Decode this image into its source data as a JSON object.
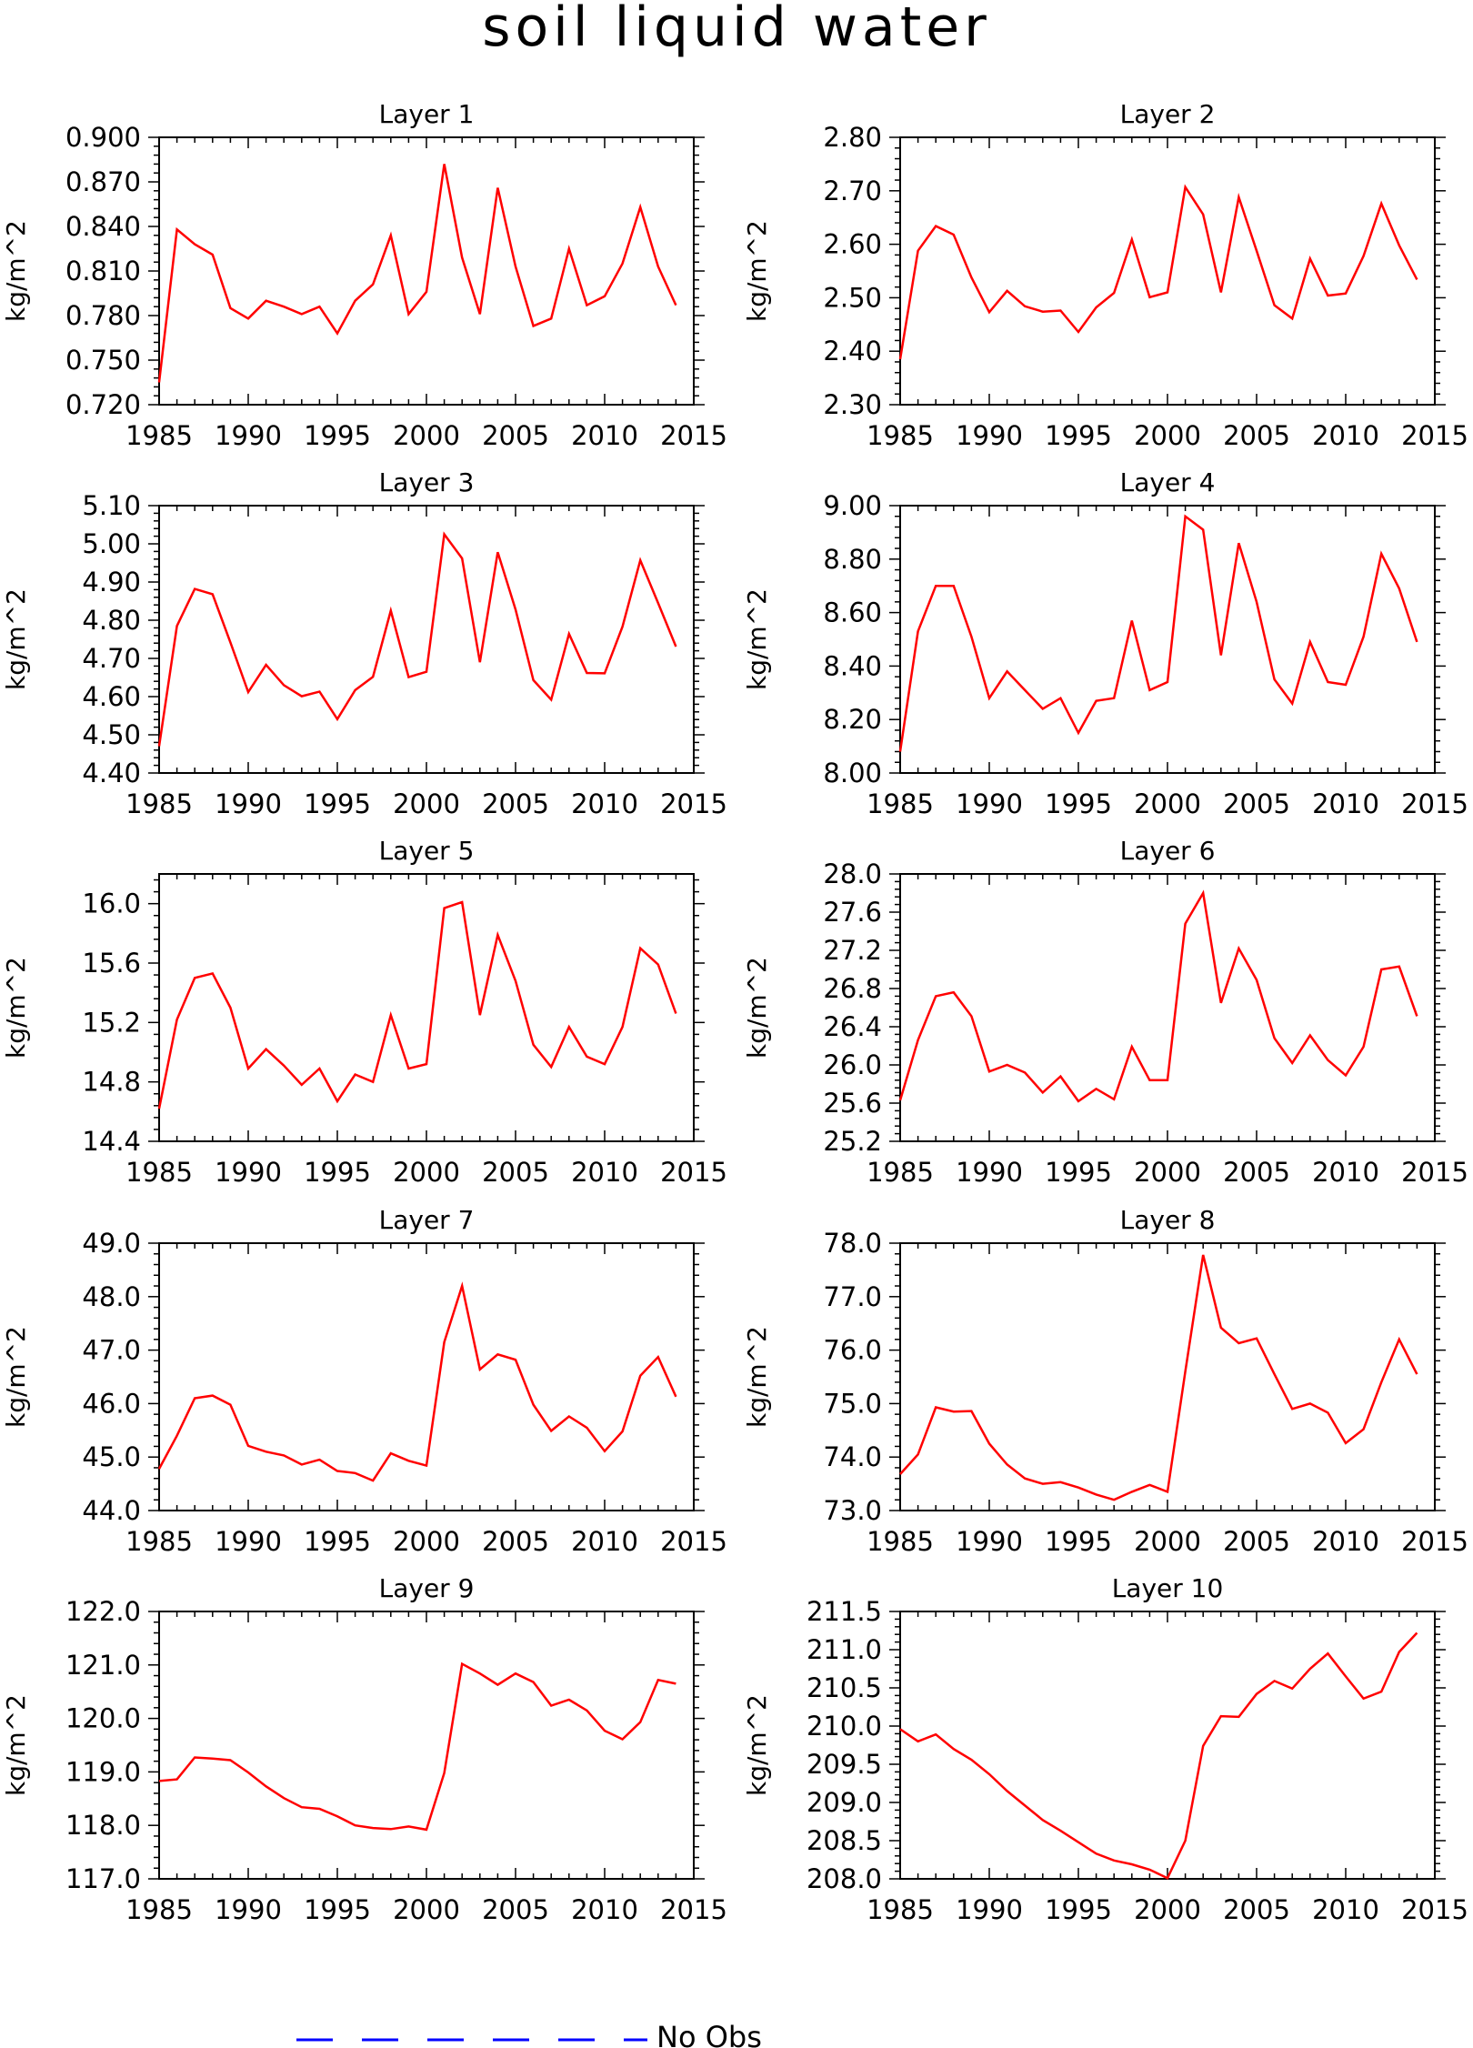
{
  "title": "soil liquid water",
  "legend": {
    "label": "No Obs",
    "color": "#0000ff",
    "style": "dashed"
  },
  "line_color": "#ff0000",
  "chart_data": [
    {
      "type": "line",
      "title": "Layer 1",
      "ylabel": "kg/m^2",
      "xlim": [
        1985,
        2015
      ],
      "ylim": [
        0.72,
        0.9
      ],
      "xticks": [
        "1985",
        "1990",
        "1995",
        "2000",
        "2005",
        "2010",
        "2015"
      ],
      "yticks": [
        "0.720",
        "0.750",
        "0.780",
        "0.810",
        "0.840",
        "0.870",
        "0.900"
      ],
      "x": [
        1985,
        1986,
        1987,
        1988,
        1989,
        1990,
        1991,
        1992,
        1993,
        1994,
        1995,
        1996,
        1997,
        1998,
        1999,
        2000,
        2001,
        2002,
        2003,
        2004,
        2005,
        2006,
        2007,
        2008,
        2009,
        2010,
        2011,
        2012,
        2013,
        2014
      ],
      "values": [
        0.735,
        0.838,
        0.828,
        0.821,
        0.785,
        0.778,
        0.79,
        0.786,
        0.781,
        0.786,
        0.768,
        0.79,
        0.801,
        0.834,
        0.781,
        0.796,
        0.882,
        0.819,
        0.781,
        0.866,
        0.813,
        0.773,
        0.778,
        0.825,
        0.787,
        0.793,
        0.815,
        0.853,
        0.813,
        0.787
      ]
    },
    {
      "type": "line",
      "title": "Layer 2",
      "ylabel": "kg/m^2",
      "xlim": [
        1985,
        2015
      ],
      "ylim": [
        2.3,
        2.8
      ],
      "xticks": [
        "1985",
        "1990",
        "1995",
        "2000",
        "2005",
        "2010",
        "2015"
      ],
      "yticks": [
        "2.30",
        "2.40",
        "2.50",
        "2.60",
        "2.70",
        "2.80"
      ],
      "x": [
        1985,
        1986,
        1987,
        1988,
        1989,
        1990,
        1991,
        1992,
        1993,
        1994,
        1995,
        1996,
        1997,
        1998,
        1999,
        2000,
        2001,
        2002,
        2003,
        2004,
        2005,
        2006,
        2007,
        2008,
        2009,
        2010,
        2011,
        2012,
        2013,
        2014
      ],
      "values": [
        2.385,
        2.588,
        2.634,
        2.618,
        2.538,
        2.473,
        2.513,
        2.484,
        2.474,
        2.476,
        2.436,
        2.482,
        2.509,
        2.609,
        2.501,
        2.51,
        2.707,
        2.656,
        2.51,
        2.688,
        2.588,
        2.486,
        2.461,
        2.573,
        2.504,
        2.508,
        2.578,
        2.676,
        2.598,
        2.534
      ]
    },
    {
      "type": "line",
      "title": "Layer 3",
      "ylabel": "kg/m^2",
      "xlim": [
        1985,
        2015
      ],
      "ylim": [
        4.4,
        5.1
      ],
      "xticks": [
        "1985",
        "1990",
        "1995",
        "2000",
        "2005",
        "2010",
        "2015"
      ],
      "yticks": [
        "4.40",
        "4.50",
        "4.60",
        "4.70",
        "4.80",
        "4.90",
        "5.00",
        "5.10"
      ],
      "x": [
        1985,
        1986,
        1987,
        1988,
        1989,
        1990,
        1991,
        1992,
        1993,
        1994,
        1995,
        1996,
        1997,
        1998,
        1999,
        2000,
        2001,
        2002,
        2003,
        2004,
        2005,
        2006,
        2007,
        2008,
        2009,
        2010,
        2011,
        2012,
        2013,
        2014
      ],
      "values": [
        4.47,
        4.785,
        4.882,
        4.868,
        4.742,
        4.612,
        4.683,
        4.63,
        4.601,
        4.613,
        4.541,
        4.617,
        4.652,
        4.825,
        4.651,
        4.665,
        5.025,
        4.962,
        4.69,
        4.978,
        4.828,
        4.643,
        4.592,
        4.764,
        4.662,
        4.661,
        4.783,
        4.957,
        4.845,
        4.731
      ]
    },
    {
      "type": "line",
      "title": "Layer 4",
      "ylabel": "kg/m^2",
      "xlim": [
        1985,
        2015
      ],
      "ylim": [
        8.0,
        9.0
      ],
      "xticks": [
        "1985",
        "1990",
        "1995",
        "2000",
        "2005",
        "2010",
        "2015"
      ],
      "yticks": [
        "8.00",
        "8.20",
        "8.40",
        "8.60",
        "8.80",
        "9.00"
      ],
      "x": [
        1985,
        1986,
        1987,
        1988,
        1989,
        1990,
        1991,
        1992,
        1993,
        1994,
        1995,
        1996,
        1997,
        1998,
        1999,
        2000,
        2001,
        2002,
        2003,
        2004,
        2005,
        2006,
        2007,
        2008,
        2009,
        2010,
        2011,
        2012,
        2013,
        2014
      ],
      "values": [
        8.08,
        8.53,
        8.7,
        8.7,
        8.51,
        8.28,
        8.38,
        8.31,
        8.24,
        8.28,
        8.15,
        8.27,
        8.28,
        8.57,
        8.31,
        8.34,
        8.96,
        8.91,
        8.44,
        8.86,
        8.64,
        8.35,
        8.26,
        8.49,
        8.34,
        8.33,
        8.51,
        8.82,
        8.69,
        8.49
      ]
    },
    {
      "type": "line",
      "title": "Layer 5",
      "ylabel": "kg/m^2",
      "xlim": [
        1985,
        2015
      ],
      "ylim": [
        14.4,
        16.2
      ],
      "xticks": [
        "1985",
        "1990",
        "1995",
        "2000",
        "2005",
        "2010",
        "2015"
      ],
      "yticks": [
        "14.4",
        "14.8",
        "15.2",
        "15.6",
        "16.0"
      ],
      "x": [
        1985,
        1986,
        1987,
        1988,
        1989,
        1990,
        1991,
        1992,
        1993,
        1994,
        1995,
        1996,
        1997,
        1998,
        1999,
        2000,
        2001,
        2002,
        2003,
        2004,
        2005,
        2006,
        2007,
        2008,
        2009,
        2010,
        2011,
        2012,
        2013,
        2014
      ],
      "values": [
        14.62,
        15.22,
        15.5,
        15.53,
        15.3,
        14.89,
        15.02,
        14.91,
        14.78,
        14.89,
        14.67,
        14.85,
        14.8,
        15.25,
        14.89,
        14.92,
        15.97,
        16.01,
        15.25,
        15.79,
        15.48,
        15.05,
        14.9,
        15.17,
        14.97,
        14.92,
        15.17,
        15.7,
        15.59,
        15.26
      ]
    },
    {
      "type": "line",
      "title": "Layer 6",
      "ylabel": "kg/m^2",
      "xlim": [
        1985,
        2015
      ],
      "ylim": [
        25.2,
        28.0
      ],
      "xticks": [
        "1985",
        "1990",
        "1995",
        "2000",
        "2005",
        "2010",
        "2015"
      ],
      "yticks": [
        "25.2",
        "25.6",
        "26.0",
        "26.4",
        "26.8",
        "27.2",
        "27.6",
        "28.0"
      ],
      "x": [
        1985,
        1986,
        1987,
        1988,
        1989,
        1990,
        1991,
        1992,
        1993,
        1994,
        1995,
        1996,
        1997,
        1998,
        1999,
        2000,
        2001,
        2002,
        2003,
        2004,
        2005,
        2006,
        2007,
        2008,
        2009,
        2010,
        2011,
        2012,
        2013,
        2014
      ],
      "values": [
        25.63,
        26.26,
        26.72,
        26.76,
        26.51,
        25.93,
        26.0,
        25.92,
        25.71,
        25.88,
        25.62,
        25.75,
        25.64,
        26.19,
        25.84,
        25.84,
        27.48,
        27.8,
        26.65,
        27.22,
        26.89,
        26.28,
        26.02,
        26.31,
        26.05,
        25.89,
        26.19,
        27.0,
        27.03,
        26.51
      ]
    },
    {
      "type": "line",
      "title": "Layer 7",
      "ylabel": "kg/m^2",
      "xlim": [
        1985,
        2015
      ],
      "ylim": [
        44.0,
        49.0
      ],
      "xticks": [
        "1985",
        "1990",
        "1995",
        "2000",
        "2005",
        "2010",
        "2015"
      ],
      "yticks": [
        "44.0",
        "45.0",
        "46.0",
        "47.0",
        "48.0",
        "49.0"
      ],
      "x": [
        1985,
        1986,
        1987,
        1988,
        1989,
        1990,
        1991,
        1992,
        1993,
        1994,
        1995,
        1996,
        1997,
        1998,
        1999,
        2000,
        2001,
        2002,
        2003,
        2004,
        2005,
        2006,
        2007,
        2008,
        2009,
        2010,
        2011,
        2012,
        2013,
        2014
      ],
      "values": [
        44.78,
        45.4,
        46.1,
        46.15,
        45.98,
        45.21,
        45.1,
        45.03,
        44.86,
        44.95,
        44.74,
        44.7,
        44.56,
        45.07,
        44.93,
        44.84,
        47.15,
        48.2,
        46.64,
        46.92,
        46.82,
        45.98,
        45.49,
        45.76,
        45.55,
        45.11,
        45.48,
        46.52,
        46.87,
        46.13
      ]
    },
    {
      "type": "line",
      "title": "Layer 8",
      "ylabel": "kg/m^2",
      "xlim": [
        1985,
        2015
      ],
      "ylim": [
        73.0,
        78.0
      ],
      "xticks": [
        "1985",
        "1990",
        "1995",
        "2000",
        "2005",
        "2010",
        "2015"
      ],
      "yticks": [
        "73.0",
        "74.0",
        "75.0",
        "76.0",
        "77.0",
        "78.0"
      ],
      "x": [
        1985,
        1986,
        1987,
        1988,
        1989,
        1990,
        1991,
        1992,
        1993,
        1994,
        1995,
        1996,
        1997,
        1998,
        1999,
        2000,
        2001,
        2002,
        2003,
        2004,
        2005,
        2006,
        2007,
        2008,
        2009,
        2010,
        2011,
        2012,
        2013,
        2014
      ],
      "values": [
        73.68,
        74.05,
        74.93,
        74.85,
        74.86,
        74.25,
        73.86,
        73.6,
        73.5,
        73.53,
        73.43,
        73.3,
        73.2,
        73.35,
        73.48,
        73.35,
        75.6,
        77.78,
        76.42,
        76.13,
        76.22,
        75.55,
        74.9,
        75.0,
        74.83,
        74.26,
        74.52,
        75.4,
        76.2,
        75.55
      ]
    },
    {
      "type": "line",
      "title": "Layer 9",
      "ylabel": "kg/m^2",
      "xlim": [
        1985,
        2015
      ],
      "ylim": [
        117.0,
        122.0
      ],
      "xticks": [
        "1985",
        "1990",
        "1995",
        "2000",
        "2005",
        "2010",
        "2015"
      ],
      "yticks": [
        "117.0",
        "118.0",
        "119.0",
        "120.0",
        "121.0",
        "122.0"
      ],
      "x": [
        1985,
        1986,
        1987,
        1988,
        1989,
        1990,
        1991,
        1992,
        1993,
        1994,
        1995,
        1996,
        1997,
        1998,
        1999,
        2000,
        2001,
        2002,
        2003,
        2004,
        2005,
        2006,
        2007,
        2008,
        2009,
        2010,
        2011,
        2012,
        2013,
        2014
      ],
      "values": [
        118.83,
        118.86,
        119.27,
        119.25,
        119.22,
        118.99,
        118.73,
        118.51,
        118.34,
        118.31,
        118.17,
        118.0,
        117.95,
        117.93,
        117.98,
        117.92,
        118.98,
        121.02,
        120.84,
        120.63,
        120.84,
        120.68,
        120.24,
        120.35,
        120.15,
        119.77,
        119.61,
        119.93,
        120.72,
        120.65
      ]
    },
    {
      "type": "line",
      "title": "Layer 10",
      "ylabel": "kg/m^2",
      "xlim": [
        1985,
        2015
      ],
      "ylim": [
        208.0,
        211.5
      ],
      "xticks": [
        "1985",
        "1990",
        "1995",
        "2000",
        "2005",
        "2010",
        "2015"
      ],
      "yticks": [
        "208.0",
        "208.5",
        "209.0",
        "209.5",
        "210.0",
        "210.5",
        "211.0",
        "211.5"
      ],
      "x": [
        1985,
        1986,
        1987,
        1988,
        1989,
        1990,
        1991,
        1992,
        1993,
        1994,
        1995,
        1996,
        1997,
        1998,
        1999,
        2000,
        2001,
        2002,
        2003,
        2004,
        2005,
        2006,
        2007,
        2008,
        2009,
        2010,
        2011,
        2012,
        2013,
        2014
      ],
      "values": [
        209.96,
        209.8,
        209.89,
        209.7,
        209.56,
        209.37,
        209.15,
        208.96,
        208.77,
        208.63,
        208.48,
        208.33,
        208.24,
        208.19,
        208.12,
        208.01,
        208.5,
        209.74,
        210.13,
        210.12,
        210.42,
        210.59,
        210.49,
        210.75,
        210.95,
        210.65,
        210.36,
        210.45,
        210.97,
        211.22
      ]
    }
  ]
}
